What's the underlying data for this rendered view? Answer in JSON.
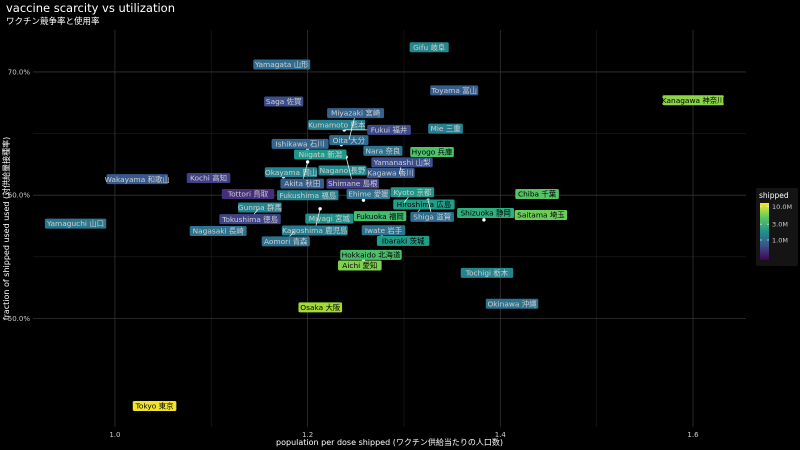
{
  "chart_data": {
    "type": "scatter",
    "title": "vaccine scarcity vs utilization",
    "subtitle": "ワクチン競争率と使用率",
    "xlabel": "population per dose shipped (ワクチン供給当たりの人口数)",
    "ylabel": "fraction of shipped used used (対供給量接種率)",
    "xlim": [
      0.915,
      1.655
    ],
    "ylim": [
      0.412,
      0.734
    ],
    "x_ticks": [
      {
        "value": 1.0,
        "label": "1.0"
      },
      {
        "value": 1.2,
        "label": "1.2"
      },
      {
        "value": 1.4,
        "label": "1.4"
      },
      {
        "value": 1.6,
        "label": "1.6"
      }
    ],
    "y_ticks": [
      {
        "value": 0.5,
        "label": "50.0%"
      },
      {
        "value": 0.6,
        "label": "60.0%"
      },
      {
        "value": 0.7,
        "label": "70.0%"
      }
    ],
    "grid": true,
    "legend": {
      "title": "shipped",
      "placement": "right",
      "scale": "log",
      "range": [
        250000,
        13000000
      ],
      "ticks": [
        {
          "value": 1000000,
          "label": "1.0M"
        },
        {
          "value": 3000000,
          "label": "3.0M"
        },
        {
          "value": 10000000,
          "label": "10.0M"
        }
      ]
    },
    "points": [
      {
        "name": "Tokyo 東京",
        "x": 1.031,
        "y": 0.429,
        "shipped": 12000000
      },
      {
        "name": "Kanagawa 神奈川",
        "x": 1.59,
        "y": 0.677,
        "shipped": 6500000
      },
      {
        "name": "Osaka 大阪",
        "x": 1.203,
        "y": 0.509,
        "shipped": 7500000
      },
      {
        "name": "Aichi 愛知",
        "x": 1.244,
        "y": 0.543,
        "shipped": 6000000
      },
      {
        "name": "Saitama 埼玉",
        "x": 1.432,
        "y": 0.584,
        "shipped": 5300000
      },
      {
        "name": "Chiba 千葉",
        "x": 1.428,
        "y": 0.601,
        "shipped": 4500000
      },
      {
        "name": "Hyogo 兵庫",
        "x": 1.319,
        "y": 0.635,
        "shipped": 4200000
      },
      {
        "name": "Hokkaido 北海道",
        "x": 1.258,
        "y": 0.548,
        "shipped": 4100000
      },
      {
        "name": "Fukuoka 福岡",
        "x": 1.265,
        "y": 0.583,
        "shipped": 3900000
      },
      {
        "name": "Shizuoka 静岡",
        "x": 1.383,
        "y": 0.58,
        "shipped": 3000000
      },
      {
        "name": "Hiroshima 広島",
        "x": 1.312,
        "y": 0.584,
        "shipped": 2300000
      },
      {
        "name": "Ibaraki 茨城",
        "x": 1.289,
        "y": 0.563,
        "shipped": 2200000
      },
      {
        "name": "Kyoto 京都",
        "x": 1.3,
        "y": 0.594,
        "shipped": 2000000
      },
      {
        "name": "Niigata 新潟",
        "x": 1.203,
        "y": 0.633,
        "shipped": 2000000
      },
      {
        "name": "Miyagi 宮城",
        "x": 1.24,
        "y": 0.581,
        "shipped": 1800000
      },
      {
        "name": "Nagano 長野",
        "x": 1.226,
        "y": 0.62,
        "shipped": 1600000
      },
      {
        "name": "Gifu 岐阜",
        "x": 1.316,
        "y": 0.72,
        "shipped": 1600000
      },
      {
        "name": "Fukushima 福島",
        "x": 1.19,
        "y": 0.6,
        "shipped": 1500000
      },
      {
        "name": "Tochigi 栃木",
        "x": 1.376,
        "y": 0.537,
        "shipped": 1500000
      },
      {
        "name": "Gunma 群馬",
        "x": 1.16,
        "y": 0.592,
        "shipped": 1500000
      },
      {
        "name": "Okinawa 沖縄",
        "x": 1.402,
        "y": 0.512,
        "shipped": 1100000
      },
      {
        "name": "Okayama 岡山",
        "x": 1.175,
        "y": 0.615,
        "shipped": 1500000
      },
      {
        "name": "Kumamoto 熊本",
        "x": 1.22,
        "y": 0.657,
        "shipped": 1400000
      },
      {
        "name": "Mie 三重",
        "x": 1.333,
        "y": 0.654,
        "shipped": 1400000
      },
      {
        "name": "Kagoshima 鹿児島",
        "x": 1.213,
        "y": 0.589,
        "shipped": 1300000
      },
      {
        "name": "Yamaguchi 山口",
        "x": 0.949,
        "y": 0.577,
        "shipped": 1200000
      },
      {
        "name": "Nagasaki 長崎",
        "x": 1.097,
        "y": 0.571,
        "shipped": 1100000
      },
      {
        "name": "Ehime 愛媛",
        "x": 1.258,
        "y": 0.596,
        "shipped": 1100000
      },
      {
        "name": "Aomori 青森",
        "x": 1.186,
        "y": 0.571,
        "shipped": 1100000
      },
      {
        "name": "Iwate 岩手",
        "x": 1.277,
        "y": 0.566,
        "shipped": 1100000
      },
      {
        "name": "Nara 奈良",
        "x": 1.268,
        "y": 0.636,
        "shipped": 1100000
      },
      {
        "name": "Shiga 滋賀",
        "x": 1.325,
        "y": 0.596,
        "shipped": 1000000
      },
      {
        "name": "Yamagata 山形",
        "x": 1.163,
        "y": 0.706,
        "shipped": 1000000
      },
      {
        "name": "Oita 大分",
        "x": 1.235,
        "y": 0.641,
        "shipped": 1000000
      },
      {
        "name": "Ishikawa 石川",
        "x": 1.2,
        "y": 0.638,
        "shipped": 900000
      },
      {
        "name": "Miyazaki 宮崎",
        "x": 1.243,
        "y": 0.645,
        "shipped": 850000
      },
      {
        "name": "Wakayama 和歌山",
        "x": 1.013,
        "y": 0.613,
        "shipped": 750000
      },
      {
        "name": "Toyama 富山",
        "x": 1.342,
        "y": 0.685,
        "shipped": 800000
      },
      {
        "name": "Kagawa 香川",
        "x": 1.276,
        "y": 0.618,
        "shipped": 750000
      },
      {
        "name": "Yamanashi 山梨",
        "x": 1.295,
        "y": 0.617,
        "shipped": 650000
      },
      {
        "name": "Akita 秋田",
        "x": 1.2,
        "y": 0.627,
        "shipped": 800000
      },
      {
        "name": "Saga 佐賀",
        "x": 1.165,
        "y": 0.676,
        "shipped": 650000
      },
      {
        "name": "Fukui 福井",
        "x": 1.238,
        "y": 0.653,
        "shipped": 600000
      },
      {
        "name": "Tokushima 徳島",
        "x": 1.149,
        "y": 0.589,
        "shipped": 560000
      },
      {
        "name": "Shimane 島根",
        "x": 1.24,
        "y": 0.631,
        "shipped": 530000
      },
      {
        "name": "Kochi 高知",
        "x": 1.087,
        "y": 0.614,
        "shipped": 530000
      },
      {
        "name": "Tottori 鳥取",
        "x": 1.128,
        "y": 0.601,
        "shipped": 420000
      }
    ]
  }
}
